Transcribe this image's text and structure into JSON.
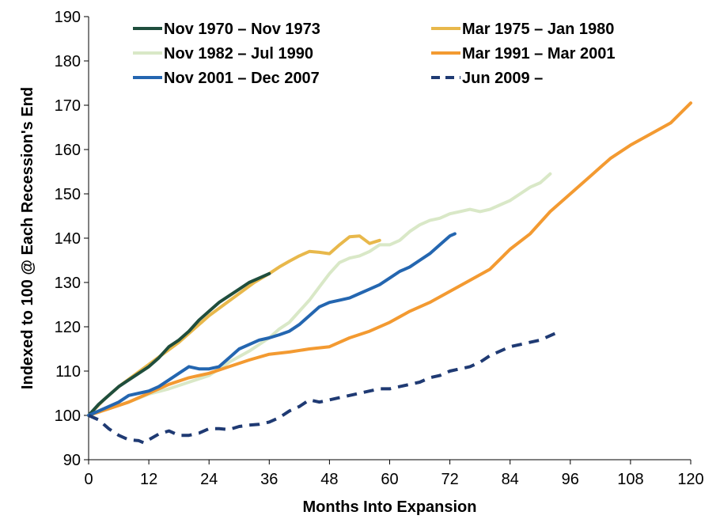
{
  "chart_data": {
    "type": "line",
    "title": "",
    "xlabel": "Months Into Expansion",
    "ylabel": "Indexed to 100 @ Each Recession's End",
    "xlim": [
      0,
      120
    ],
    "ylim": [
      90,
      190
    ],
    "xticks": [
      "0",
      "12",
      "24",
      "36",
      "48",
      "60",
      "72",
      "84",
      "96",
      "108",
      "120"
    ],
    "yticks": [
      "90",
      "100",
      "110",
      "120",
      "130",
      "140",
      "150",
      "160",
      "170",
      "180",
      "190"
    ],
    "grid": false,
    "legend_position": "top",
    "series": [
      {
        "name": "Nov 1970 – Nov 1973",
        "color": "#1F4E3D",
        "dash": "solid",
        "x": [
          0,
          2,
          4,
          6,
          8,
          10,
          12,
          14,
          16,
          18,
          20,
          22,
          24,
          26,
          28,
          30,
          32,
          34,
          36
        ],
        "y": [
          100,
          102.5,
          104.5,
          106.5,
          108,
          109.5,
          111,
          113,
          115.5,
          117,
          119,
          121.5,
          123.5,
          125.5,
          127,
          128.5,
          130,
          131,
          132
        ]
      },
      {
        "name": "Mar 1975 – Jan 1980",
        "color": "#E8B84B",
        "dash": "solid",
        "x": [
          0,
          3,
          6,
          9,
          12,
          15,
          18,
          21,
          24,
          27,
          30,
          33,
          36,
          38,
          40,
          42,
          44,
          46,
          48,
          50,
          52,
          54,
          56,
          58
        ],
        "y": [
          100,
          103.5,
          106.5,
          109,
          111.5,
          114,
          116.5,
          119.5,
          122.5,
          125,
          127.5,
          130,
          132,
          133.5,
          134.8,
          136,
          137,
          136.8,
          136.5,
          138.5,
          140.3,
          140.5,
          138.8,
          139.5
        ]
      },
      {
        "name": "Nov 1982 – Jul 1990",
        "color": "#D9E8C7",
        "dash": "solid",
        "x": [
          0,
          4,
          8,
          12,
          16,
          20,
          24,
          28,
          32,
          36,
          38,
          40,
          42,
          44,
          46,
          48,
          50,
          52,
          54,
          56,
          58,
          60,
          62,
          64,
          66,
          68,
          70,
          72,
          74,
          76,
          78,
          80,
          82,
          84,
          86,
          88,
          90,
          92
        ],
        "y": [
          100,
          101.5,
          103,
          104.8,
          106,
          107.5,
          109,
          112,
          114.5,
          117.5,
          119.5,
          121,
          123.5,
          126,
          129,
          132,
          134.5,
          135.5,
          136,
          137,
          138.5,
          138.5,
          139.5,
          141.5,
          143,
          144,
          144.5,
          145.5,
          146,
          146.5,
          146,
          146.5,
          147.5,
          148.5,
          150,
          151.5,
          152.5,
          154.5
        ]
      },
      {
        "name": "Mar 1991 – Mar 2001",
        "color": "#F39A31",
        "dash": "solid",
        "x": [
          0,
          4,
          8,
          12,
          16,
          20,
          24,
          28,
          32,
          36,
          40,
          44,
          48,
          52,
          56,
          60,
          64,
          68,
          72,
          76,
          80,
          84,
          88,
          92,
          96,
          100,
          104,
          108,
          112,
          116,
          120
        ],
        "y": [
          100,
          101.5,
          103,
          105,
          107,
          108.5,
          109.5,
          111,
          112.5,
          113.8,
          114.3,
          115,
          115.5,
          117.5,
          119,
          121,
          123.5,
          125.5,
          128,
          130.5,
          133,
          137.5,
          141,
          146,
          150,
          154,
          158,
          161,
          163.5,
          166,
          170.5
        ]
      },
      {
        "name": "Nov 2001 – Dec 2007",
        "color": "#2466B0",
        "dash": "solid",
        "x": [
          0,
          2,
          4,
          6,
          8,
          10,
          12,
          14,
          16,
          18,
          20,
          22,
          24,
          26,
          28,
          30,
          32,
          34,
          36,
          38,
          40,
          42,
          44,
          46,
          48,
          50,
          52,
          54,
          56,
          58,
          60,
          62,
          64,
          66,
          68,
          70,
          72,
          73
        ],
        "y": [
          100,
          101,
          102,
          103,
          104.5,
          105,
          105.5,
          106.5,
          108,
          109.5,
          111,
          110.5,
          110.5,
          111,
          113,
          115,
          116,
          117,
          117.5,
          118.2,
          119,
          120.5,
          122.5,
          124.5,
          125.5,
          126,
          126.5,
          127.5,
          128.5,
          129.5,
          131,
          132.5,
          133.5,
          135,
          136.5,
          138.5,
          140.5,
          141
        ]
      },
      {
        "name": "Jun 2009 –",
        "color": "#1F3A73",
        "dash": "dashed",
        "x": [
          0,
          2,
          4,
          6,
          8,
          10,
          11,
          12,
          14,
          16,
          18,
          20,
          22,
          24,
          26,
          28,
          30,
          32,
          34,
          36,
          38,
          40,
          42,
          44,
          46,
          48,
          50,
          52,
          54,
          56,
          58,
          60,
          62,
          64,
          66,
          68,
          70,
          72,
          74,
          76,
          78,
          80,
          82,
          84,
          86,
          88,
          90,
          92,
          94
        ],
        "y": [
          100,
          99,
          97,
          95.5,
          94.5,
          94.3,
          93.8,
          94.5,
          95.8,
          96.5,
          95.5,
          95.5,
          96,
          97,
          97,
          96.8,
          97.5,
          97.8,
          98,
          98.5,
          99.5,
          101,
          102,
          103.5,
          103,
          103.5,
          104,
          104.5,
          105,
          105.5,
          106,
          106,
          106.5,
          107,
          107.5,
          108.5,
          109,
          110,
          110.5,
          111,
          112,
          113.5,
          114.5,
          115.5,
          116,
          116.5,
          117,
          118,
          119
        ]
      }
    ]
  }
}
